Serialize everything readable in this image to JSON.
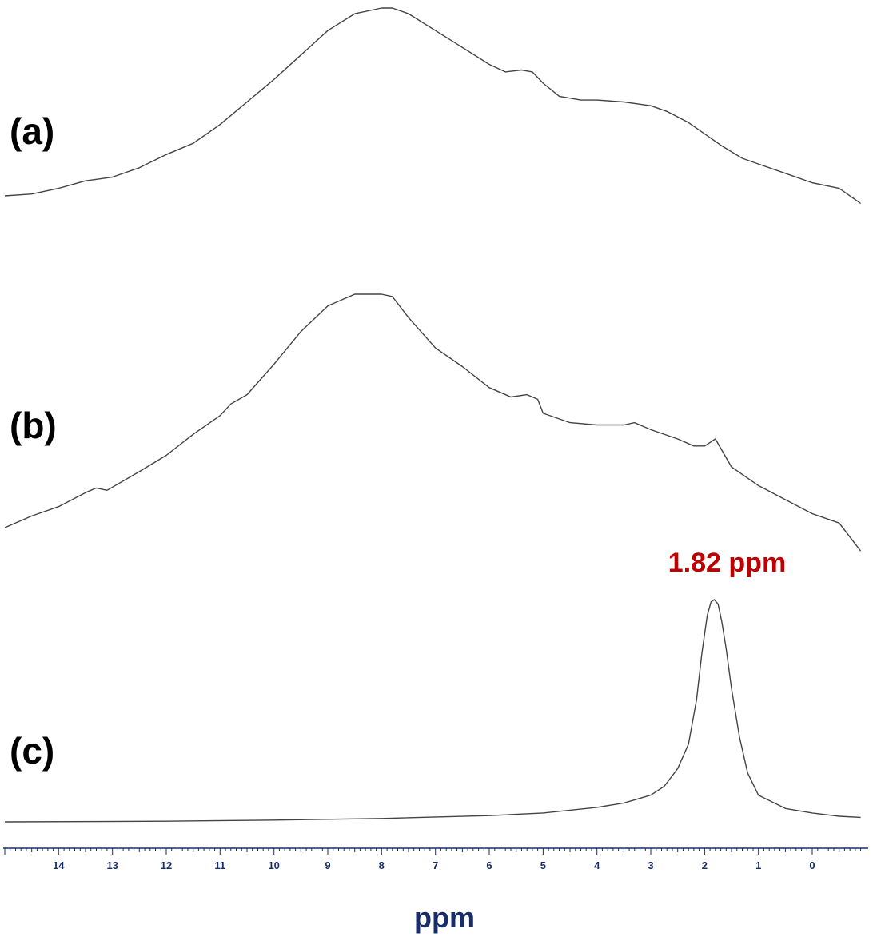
{
  "chart_data": {
    "type": "line",
    "xlabel": "ppm",
    "xlim": [
      15.0,
      -0.95
    ],
    "x_reversed": true,
    "x_ticks": [
      14,
      13,
      12,
      11,
      10,
      9,
      8,
      7,
      6,
      5,
      4,
      3,
      2,
      1,
      0
    ],
    "grid": false,
    "legend": "none",
    "colors": {
      "trace": "#444444",
      "axis": "#1a2d6b",
      "annotation": "#c00000"
    },
    "series": [
      {
        "label": "(a)",
        "x": [
          15.0,
          14.5,
          14.0,
          13.5,
          13.0,
          12.5,
          12.0,
          11.5,
          11.0,
          10.5,
          10.0,
          9.5,
          9.0,
          8.5,
          8.0,
          7.8,
          7.5,
          7.0,
          6.5,
          6.0,
          5.7,
          5.4,
          5.2,
          5.0,
          4.7,
          4.3,
          4.0,
          3.5,
          3.0,
          2.7,
          2.3,
          2.0,
          1.7,
          1.3,
          1.0,
          0.5,
          0.0,
          -0.5,
          -0.9
        ],
        "y": [
          0.0,
          0.01,
          0.04,
          0.08,
          0.1,
          0.15,
          0.22,
          0.28,
          0.38,
          0.5,
          0.62,
          0.75,
          0.88,
          0.97,
          1.0,
          1.0,
          0.97,
          0.88,
          0.79,
          0.7,
          0.66,
          0.67,
          0.66,
          0.6,
          0.53,
          0.51,
          0.51,
          0.5,
          0.48,
          0.45,
          0.39,
          0.33,
          0.27,
          0.2,
          0.17,
          0.12,
          0.07,
          0.04,
          -0.04
        ]
      },
      {
        "label": "(b)",
        "x": [
          15.0,
          14.5,
          14.0,
          13.5,
          13.3,
          13.1,
          12.5,
          12.0,
          11.5,
          11.0,
          10.8,
          10.5,
          10.0,
          9.5,
          9.0,
          8.5,
          8.0,
          7.8,
          7.5,
          7.0,
          6.5,
          6.0,
          5.6,
          5.3,
          5.1,
          5.0,
          4.5,
          4.0,
          3.5,
          3.3,
          3.0,
          2.5,
          2.2,
          2.0,
          1.8,
          1.5,
          1.0,
          0.5,
          0.0,
          -0.5,
          -0.9
        ],
        "y": [
          0.0,
          0.05,
          0.09,
          0.15,
          0.17,
          0.16,
          0.24,
          0.31,
          0.4,
          0.48,
          0.53,
          0.57,
          0.7,
          0.84,
          0.95,
          1.0,
          1.0,
          0.99,
          0.9,
          0.77,
          0.69,
          0.6,
          0.56,
          0.57,
          0.55,
          0.49,
          0.45,
          0.44,
          0.44,
          0.45,
          0.42,
          0.38,
          0.35,
          0.35,
          0.38,
          0.26,
          0.18,
          0.12,
          0.06,
          0.02,
          -0.1
        ]
      },
      {
        "label": "(c)",
        "x": [
          15.0,
          12.0,
          10.0,
          8.0,
          6.0,
          5.0,
          4.0,
          3.5,
          3.0,
          2.75,
          2.5,
          2.3,
          2.15,
          2.05,
          1.95,
          1.88,
          1.82,
          1.75,
          1.68,
          1.6,
          1.5,
          1.35,
          1.2,
          1.0,
          0.5,
          0.0,
          -0.5,
          -0.9
        ],
        "y": [
          0.0,
          0.003,
          0.008,
          0.015,
          0.028,
          0.04,
          0.065,
          0.085,
          0.12,
          0.16,
          0.24,
          0.35,
          0.55,
          0.76,
          0.93,
          0.99,
          1.0,
          0.98,
          0.9,
          0.78,
          0.6,
          0.38,
          0.22,
          0.12,
          0.06,
          0.04,
          0.025,
          0.02
        ]
      }
    ],
    "annotations": [
      {
        "text": "1.82 ppm",
        "x": 1.82,
        "series": "(c)"
      }
    ]
  }
}
